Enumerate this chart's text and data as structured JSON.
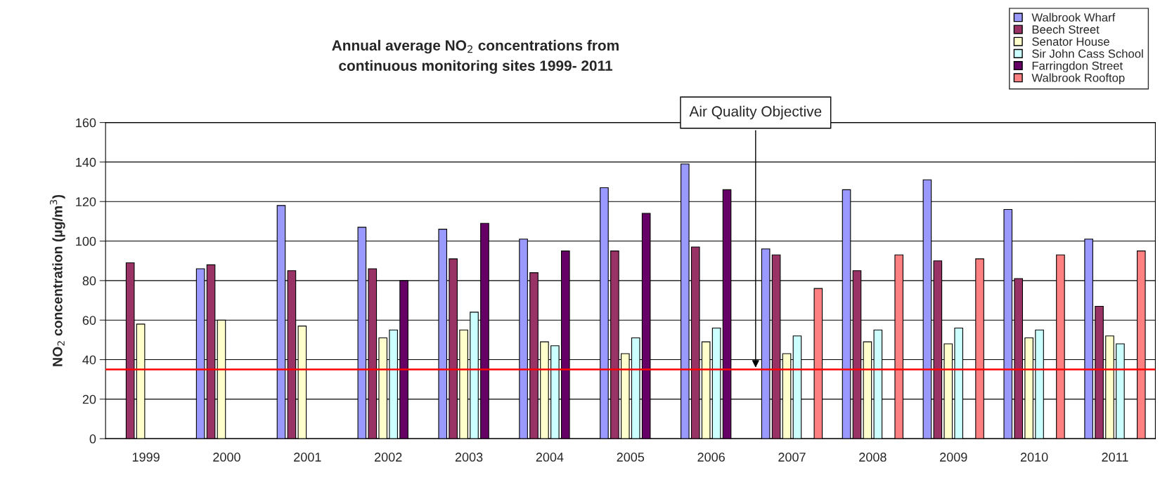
{
  "chart_data": {
    "type": "bar",
    "title": "Annual average NO$_{2}$ concentrations from\ncontinuous monitoring sites 1999- 2011",
    "ylabel": "NO$_{2}$ concentration (µg/m$^{3}$)",
    "categories": [
      "1999",
      "2000",
      "2001",
      "2002",
      "2003",
      "2004",
      "2005",
      "2006",
      "2007",
      "2008",
      "2009",
      "2010",
      "2011"
    ],
    "series": [
      {
        "name": "Walbrook Wharf",
        "color": "#9999ff",
        "values": [
          null,
          86,
          118,
          107,
          106,
          101,
          127,
          139,
          96,
          126,
          131,
          116,
          101
        ]
      },
      {
        "name": "Beech Street",
        "color": "#993366",
        "values": [
          89,
          88,
          85,
          86,
          91,
          84,
          95,
          97,
          93,
          85,
          90,
          81,
          67
        ]
      },
      {
        "name": "Senator House",
        "color": "#ffffcc",
        "values": [
          58,
          60,
          57,
          51,
          55,
          49,
          43,
          49,
          43,
          49,
          48,
          51,
          52
        ]
      },
      {
        "name": "Sir John Cass School",
        "color": "#ccffff",
        "values": [
          null,
          null,
          null,
          55,
          64,
          47,
          51,
          56,
          52,
          55,
          56,
          55,
          48
        ]
      },
      {
        "name": "Farringdon Street",
        "color": "#660066",
        "values": [
          null,
          null,
          null,
          80,
          109,
          95,
          114,
          126,
          null,
          null,
          null,
          null,
          null
        ]
      },
      {
        "name": "Walbrook Rooftop",
        "color": "#ff8080",
        "values": [
          null,
          null,
          null,
          null,
          null,
          null,
          null,
          null,
          76,
          93,
          91,
          93,
          95
        ]
      }
    ],
    "ylim": [
      0,
      160
    ],
    "yticks": [
      0,
      20,
      40,
      60,
      80,
      100,
      120,
      140,
      160
    ],
    "grid": "y",
    "legend": "top right",
    "ref_lines": [
      {
        "axis": "y",
        "value": 35,
        "label": "Air Quality Objective",
        "color": "#ff0000"
      }
    ]
  }
}
